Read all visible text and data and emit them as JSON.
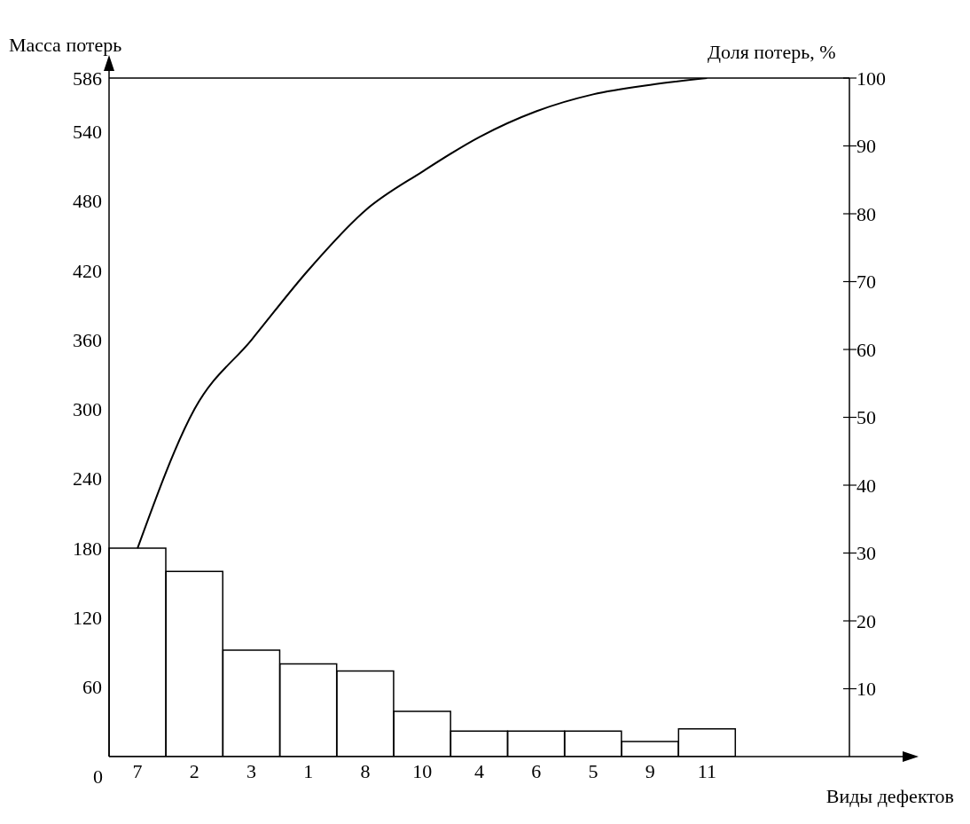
{
  "chart_data": {
    "type": "bar",
    "xlabel": "Виды дефектов",
    "ylabel": "Масса потерь",
    "y2label": "Доля потерь, %",
    "categories": [
      "7",
      "2",
      "3",
      "1",
      "8",
      "10",
      "4",
      "6",
      "5",
      "9",
      "11"
    ],
    "series": [
      {
        "color": "#000000",
        "values": [
          180,
          160,
          92,
          80,
          74,
          39,
          22,
          22,
          22,
          13,
          24
        ]
      },
      {
        "type": "line",
        "axis": "y2",
        "color": "#000000",
        "values": [
          30.7,
          51.2,
          61.4,
          71.7,
          80.5,
          86.2,
          91.3,
          95.1,
          97.6,
          99.0,
          100
        ]
      }
    ],
    "ylim": [
      0,
      586
    ],
    "yticks": [
      60,
      120,
      180,
      240,
      300,
      360,
      420,
      480,
      540,
      586
    ],
    "y2lim": [
      0,
      100
    ],
    "y2ticks": [
      10,
      20,
      30,
      40,
      50,
      60,
      70,
      80,
      90,
      100
    ],
    "ref_lines": [
      {
        "axis": "y",
        "value": 586,
        "color": "#000000"
      }
    ],
    "annotations": [
      "0"
    ],
    "grid": false,
    "marker": "none",
    "line_style": "solid"
  }
}
